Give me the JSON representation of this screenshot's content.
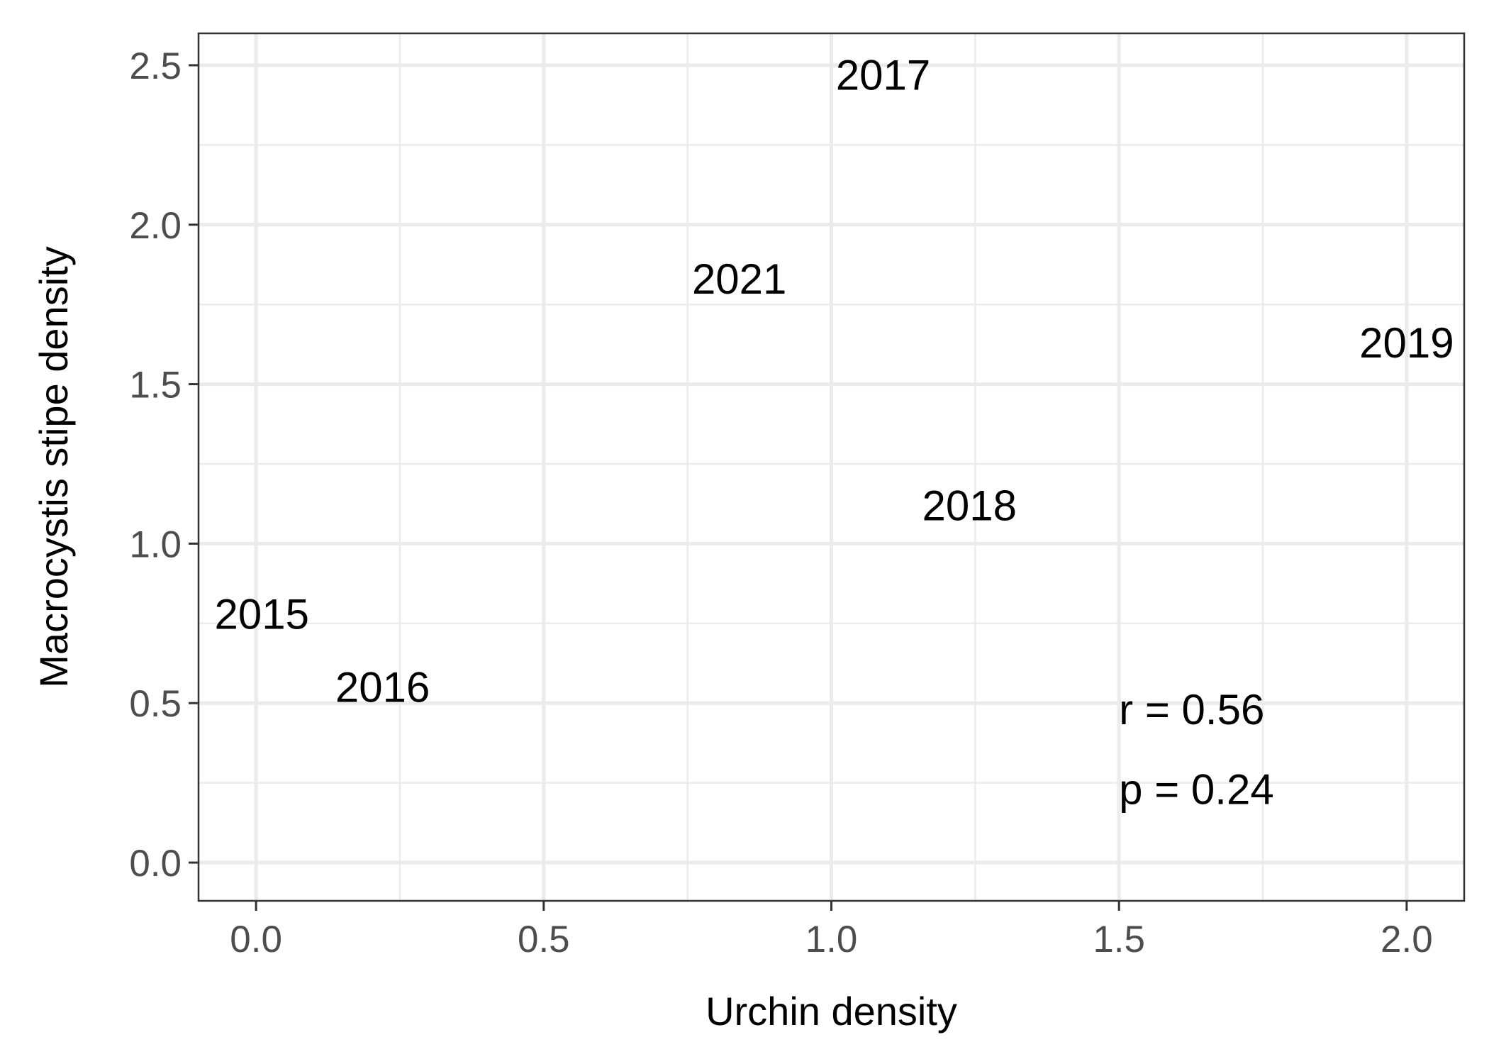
{
  "chart_data": {
    "type": "scatter",
    "title": "",
    "xlabel": "Urchin density",
    "ylabel": "Macrocystis stipe density",
    "xlim": [
      -0.1,
      2.1
    ],
    "ylim": [
      -0.12,
      2.6
    ],
    "x_ticks": [
      0.0,
      0.5,
      1.0,
      1.5,
      2.0
    ],
    "x_tick_labels": [
      "0.0",
      "0.5",
      "1.0",
      "1.5",
      "2.0"
    ],
    "y_ticks": [
      0.0,
      0.5,
      1.0,
      1.5,
      2.0,
      2.5
    ],
    "y_tick_labels": [
      "0.0",
      "0.5",
      "1.0",
      "1.5",
      "2.0",
      "2.5"
    ],
    "grid": true,
    "points": [
      {
        "label": "2015",
        "x": 0.01,
        "y": 0.78
      },
      {
        "label": "2016",
        "x": 0.22,
        "y": 0.55
      },
      {
        "label": "2017",
        "x": 1.09,
        "y": 2.47
      },
      {
        "label": "2018",
        "x": 1.24,
        "y": 1.12
      },
      {
        "label": "2019",
        "x": 2.0,
        "y": 1.63
      },
      {
        "label": "2021",
        "x": 0.84,
        "y": 1.83
      }
    ],
    "annotations": [
      {
        "text": "r = 0.56",
        "x": 1.5,
        "y": 0.48
      },
      {
        "text": "p = 0.24",
        "x": 1.5,
        "y": 0.23
      }
    ]
  }
}
